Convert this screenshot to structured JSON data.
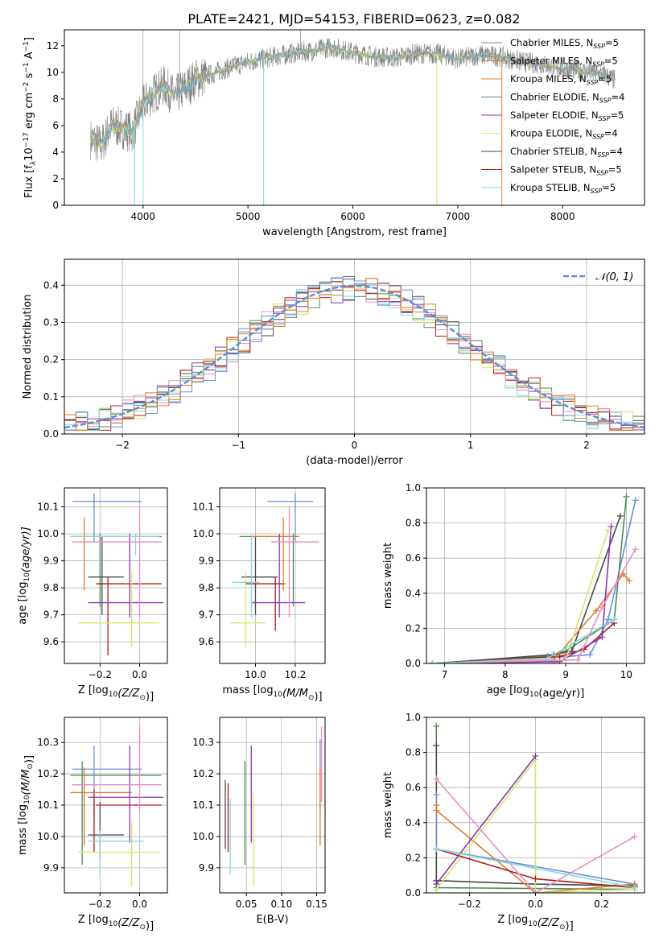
{
  "figure_title": "PLATE=2421, MJD=54153, FIBERID=0623, z=0.082",
  "colors": {
    "gray": "#808080",
    "cyan": "#7fd9e0",
    "orange": "#e07b28",
    "blue": "#6b8fd6",
    "purple": "#8e33b0",
    "pink": "#e88cc4",
    "yellowgreen": "#cfe86a",
    "darkred": "#b01a1a",
    "darkgray": "#4a4a4a",
    "green": "#4e8a58",
    "normal_line": "#5b8ed1"
  },
  "chart_data": [
    {
      "id": "spectrum",
      "type": "line",
      "xlabel": "wavelength [Angstrom, rest frame]",
      "ylabel": "Flux [f",
      "ylabel_sub": "λ",
      "ylabel_rest": "10",
      "ylabel_sup1": "−17",
      "ylabel_rest2": " erg cm",
      "ylabel_sup2": "−2",
      "ylabel_rest3": " s",
      "ylabel_sup3": "−1",
      "ylabel_rest4": " A",
      "ylabel_sup4": "−1",
      "ylabel_end": "]",
      "xlim": [
        3250,
        8780
      ],
      "ylim": [
        0,
        13.2
      ],
      "xticks": [
        4000,
        5000,
        6000,
        7000,
        8000
      ],
      "yticks": [
        0,
        2,
        4,
        6,
        8,
        10,
        12
      ],
      "legend": [
        {
          "prefix": "Chabrier MILES, N",
          "sub": "SSP",
          "suffix": "=5",
          "color": "#808080"
        },
        {
          "prefix": "Salpeter MILES, N",
          "sub": "SSP",
          "suffix": "=5",
          "color": "#e07b28"
        },
        {
          "prefix": "Kroupa MILES, N",
          "sub": "SSP",
          "suffix": "=5",
          "color": "#e07b28"
        },
        {
          "prefix": "Chabrier ELODIE, N",
          "sub": "SSP",
          "suffix": "=4",
          "color": "#4e8a58"
        },
        {
          "prefix": "Salpeter ELODIE, N",
          "sub": "SSP",
          "suffix": "=5",
          "color": "#8e33b0"
        },
        {
          "prefix": "Kroupa ELODIE, N",
          "sub": "SSP",
          "suffix": "=4",
          "color": "#cfe86a"
        },
        {
          "prefix": "Chabrier STELIB, N",
          "sub": "SSP",
          "suffix": "=4",
          "color": "#4a4a4a"
        },
        {
          "prefix": "Salpeter STELIB, N",
          "sub": "SSP",
          "suffix": "=5",
          "color": "#b01a1a"
        },
        {
          "prefix": "Kroupa STELIB, N",
          "sub": "SSP",
          "suffix": "=5",
          "color": "#7fd9e0"
        }
      ],
      "legend_position": "right",
      "envelope": {
        "x": [
          3500,
          3600,
          3700,
          3800,
          3900,
          4000,
          4100,
          4200,
          4300,
          4400,
          4500,
          4600,
          4800,
          5000,
          5200,
          5400,
          5600,
          5800,
          6000,
          6200,
          6400,
          6600,
          6800,
          7000,
          7200,
          7400,
          7600,
          7800,
          8000,
          8200,
          8400,
          8500
        ],
        "y": [
          5.0,
          4.5,
          6.0,
          5.8,
          5.5,
          7.6,
          8.4,
          9.0,
          8.2,
          8.8,
          9.5,
          9.7,
          10.3,
          10.8,
          11.1,
          11.4,
          11.6,
          11.9,
          11.5,
          11.2,
          11.1,
          11.4,
          11.4,
          11.0,
          11.3,
          11.2,
          10.8,
          10.6,
          10.3,
          10.1,
          9.8,
          9.4
        ]
      },
      "dips": [
        {
          "x": 4000,
          "y": 0
        },
        {
          "x": 5150,
          "y": 0
        },
        {
          "x": 3920,
          "y": 0
        },
        {
          "x": 6800,
          "y": 0
        },
        {
          "x": 7420,
          "y": 0
        }
      ]
    },
    {
      "id": "residuals",
      "type": "line",
      "xlabel": "(data-model)/error",
      "ylabel": "Normed distribution",
      "xlim": [
        -2.5,
        2.5
      ],
      "ylim": [
        0,
        0.47
      ],
      "xticks": [
        -2,
        -1,
        0,
        1,
        2
      ],
      "yticks": [
        0.0,
        0.1,
        0.2,
        0.3,
        0.4
      ],
      "grid": true,
      "legend": [
        {
          "label": "𝒩(0, 1)",
          "color": "#5b8ed1"
        }
      ],
      "legend_position": "top-right",
      "bin_width": 0.1
    },
    {
      "id": "age-z",
      "type": "scatter",
      "xlabel": "Z [log",
      "xlabel_sub": "10",
      "xlabel_mid": "(Z/Z",
      "xlabel_sub2": "⊙",
      "xlabel_end": ")]",
      "ylabel": "age  [log",
      "ylabel_sub": "10",
      "ylabel_end": "(age/yr)]",
      "xlim": [
        -0.38,
        0.14
      ],
      "ylim": [
        9.52,
        10.17
      ],
      "xticks": [
        -0.2,
        0.0
      ],
      "yticks": [
        9.6,
        9.7,
        9.8,
        9.9,
        10.0,
        10.1
      ],
      "grid": true,
      "crosses": [
        {
          "x": -0.23,
          "y": 10.12,
          "xe": [
            -0.34,
            0.01
          ],
          "ye": [
            9.97,
            10.15
          ],
          "color": "#6b8fd6"
        },
        {
          "x": -0.2,
          "y": 9.99,
          "xe": [
            -0.35,
            0.11
          ],
          "ye": [
            9.73,
            10.0
          ],
          "color": "#4e8a58"
        },
        {
          "x": -0.19,
          "y": 9.84,
          "xe": [
            -0.26,
            -0.08
          ],
          "ye": [
            9.7,
            9.99
          ],
          "color": "#4a4a4a"
        },
        {
          "x": -0.16,
          "y": 9.815,
          "xe": [
            -0.22,
            0.11
          ],
          "ye": [
            9.55,
            9.84
          ],
          "color": "#b01a1a"
        },
        {
          "x": -0.28,
          "y": 9.99,
          "xe": [
            -0.33,
            -0.1
          ],
          "ye": [
            9.79,
            10.06
          ],
          "color": "#e07b28"
        },
        {
          "x": -0.05,
          "y": 9.745,
          "xe": [
            -0.26,
            0.12
          ],
          "ye": [
            9.69,
            10.0
          ],
          "color": "#8e33b0"
        },
        {
          "x": -0.04,
          "y": 9.67,
          "xe": [
            -0.31,
            0.1
          ],
          "ye": [
            9.58,
            9.86
          ],
          "color": "#cfe86a"
        },
        {
          "x": 0.0,
          "y": 9.97,
          "xe": [
            -0.34,
            0.11
          ],
          "ye": [
            9.69,
            10.1
          ],
          "color": "#e88cc4"
        },
        {
          "x": -0.02,
          "y": 9.99,
          "xe": [
            -0.35,
            0.1
          ],
          "ye": [
            9.92,
            10.0
          ],
          "color": "#7fd9e0"
        }
      ]
    },
    {
      "id": "age-mass",
      "type": "scatter",
      "xlabel": "mass [log",
      "xlabel_sub": "10",
      "xlabel_mid": "(M/M",
      "xlabel_sub2": "⊙",
      "xlabel_end": ")]",
      "ylabel": "",
      "xlim": [
        9.82,
        10.35
      ],
      "ylim": [
        9.52,
        10.17
      ],
      "xticks": [
        10.0,
        10.2
      ],
      "yticks": [
        9.6,
        9.7,
        9.8,
        9.9,
        10.0,
        10.1
      ],
      "grid": true,
      "crosses": [
        {
          "x": 10.2,
          "y": 10.12,
          "xe": [
            10.06,
            10.29
          ],
          "ye": [
            9.97,
            10.15
          ],
          "color": "#6b8fd6"
        },
        {
          "x": 10.19,
          "y": 9.99,
          "xe": [
            9.92,
            10.22
          ],
          "ye": [
            9.73,
            10.0
          ],
          "color": "#4e8a58"
        },
        {
          "x": 10.0,
          "y": 9.84,
          "xe": [
            9.93,
            10.11
          ],
          "ye": [
            9.7,
            9.99
          ],
          "color": "#4a4a4a"
        },
        {
          "x": 10.1,
          "y": 9.815,
          "xe": [
            9.95,
            10.15
          ],
          "ye": [
            9.64,
            9.84
          ],
          "color": "#b01a1a"
        },
        {
          "x": 10.14,
          "y": 9.99,
          "xe": [
            9.98,
            10.22
          ],
          "ye": [
            9.79,
            10.06
          ],
          "color": "#e07b28"
        },
        {
          "x": 10.12,
          "y": 9.745,
          "xe": [
            9.98,
            10.25
          ],
          "ye": [
            9.69,
            10.0
          ],
          "color": "#8e33b0"
        },
        {
          "x": 9.95,
          "y": 9.67,
          "xe": [
            9.87,
            10.05
          ],
          "ye": [
            9.58,
            9.86
          ],
          "color": "#cfe86a"
        },
        {
          "x": 10.17,
          "y": 9.97,
          "xe": [
            10.08,
            10.32
          ],
          "ye": [
            9.69,
            10.1
          ],
          "color": "#e88cc4"
        },
        {
          "x": 9.98,
          "y": 9.82,
          "xe": [
            9.88,
            10.02
          ],
          "ye": [
            9.69,
            9.99
          ],
          "color": "#7fd9e0"
        }
      ]
    },
    {
      "id": "weight-age",
      "type": "line",
      "xlabel": "age  [log",
      "xlabel_sub": "10",
      "xlabel_end": "(age/yr)]",
      "ylabel": "mass weight",
      "xlim": [
        6.7,
        10.3
      ],
      "ylim": [
        0,
        1.0
      ],
      "xticks": [
        7,
        8,
        9,
        10
      ],
      "yticks": [
        0.0,
        0.2,
        0.4,
        0.6,
        0.8,
        1.0
      ],
      "grid": true,
      "series": [
        {
          "color": "#6b8fd6",
          "x": [
            6.8,
            8.7,
            9.4,
            9.7,
            10.15
          ],
          "y": [
            0.0,
            0.03,
            0.05,
            0.25,
            0.93
          ]
        },
        {
          "color": "#4e8a58",
          "x": [
            6.8,
            8.7,
            9.0,
            9.8,
            10.0
          ],
          "y": [
            0.0,
            0.04,
            0.07,
            0.25,
            0.95
          ]
        },
        {
          "color": "#4a4a4a",
          "x": [
            6.8,
            8.8,
            9.1,
            9.9
          ],
          "y": [
            0.0,
            0.05,
            0.07,
            0.84
          ]
        },
        {
          "color": "#b01a1a",
          "x": [
            6.8,
            8.9,
            9.3,
            9.8
          ],
          "y": [
            0.0,
            0.04,
            0.08,
            0.23
          ]
        },
        {
          "color": "#e07b28",
          "x": [
            6.8,
            8.8,
            9.5,
            9.95,
            10.05
          ],
          "y": [
            0.0,
            0.02,
            0.3,
            0.51,
            0.47
          ]
        },
        {
          "color": "#8e33b0",
          "x": [
            6.8,
            8.9,
            9.6,
            9.75
          ],
          "y": [
            0.0,
            0.01,
            0.15,
            0.78
          ]
        },
        {
          "color": "#cfe86a",
          "x": [
            6.8,
            9.0,
            9.7
          ],
          "y": [
            0.0,
            0.02,
            0.76
          ]
        },
        {
          "color": "#e88cc4",
          "x": [
            6.8,
            9.2,
            9.6,
            10.15
          ],
          "y": [
            0.0,
            0.02,
            0.32,
            0.65
          ]
        },
        {
          "color": "#7fd9e0",
          "x": [
            6.8,
            8.7,
            9.8
          ],
          "y": [
            0.0,
            0.03,
            0.25
          ]
        }
      ]
    },
    {
      "id": "mass-z",
      "type": "scatter",
      "xlabel": "Z [log",
      "xlabel_sub": "10",
      "xlabel_mid": "(Z/Z",
      "xlabel_sub2": "⊙",
      "xlabel_end": ")]",
      "ylabel": "mass [log",
      "ylabel_sub": "10",
      "ylabel_mid": "(M/M",
      "ylabel_sub2": "⊙",
      "ylabel_end": ")]",
      "xlim": [
        -0.38,
        0.14
      ],
      "ylim": [
        9.82,
        10.38
      ],
      "xticks": [
        -0.2,
        0.0
      ],
      "yticks": [
        9.9,
        10.0,
        10.1,
        10.2,
        10.3
      ],
      "grid": true,
      "crosses": [
        {
          "x": -0.23,
          "y": 10.215,
          "xe": [
            -0.34,
            0.01
          ],
          "ye": [
            10.06,
            10.29
          ],
          "color": "#6b8fd6"
        },
        {
          "x": -0.29,
          "y": 10.195,
          "xe": [
            -0.35,
            0.11
          ],
          "ye": [
            9.91,
            10.24
          ],
          "color": "#4e8a58"
        },
        {
          "x": -0.2,
          "y": 10.005,
          "xe": [
            -0.26,
            -0.08
          ],
          "ye": [
            9.93,
            10.11
          ],
          "color": "#4a4a4a"
        },
        {
          "x": -0.23,
          "y": 10.1,
          "xe": [
            -0.22,
            0.11
          ],
          "ye": [
            9.95,
            10.15
          ],
          "color": "#b01a1a"
        },
        {
          "x": -0.28,
          "y": 10.14,
          "xe": [
            -0.35,
            -0.04
          ],
          "ye": [
            9.97,
            10.22
          ],
          "color": "#e07b28"
        },
        {
          "x": -0.05,
          "y": 10.125,
          "xe": [
            -0.26,
            0.12
          ],
          "ye": [
            9.98,
            10.29
          ],
          "color": "#8e33b0"
        },
        {
          "x": -0.04,
          "y": 9.95,
          "xe": [
            -0.31,
            0.1
          ],
          "ye": [
            9.84,
            10.05
          ],
          "color": "#cfe86a"
        },
        {
          "x": 0.0,
          "y": 10.165,
          "xe": [
            -0.34,
            0.11
          ],
          "ye": [
            10.08,
            10.35
          ],
          "color": "#e88cc4"
        },
        {
          "x": -0.2,
          "y": 9.985,
          "xe": [
            -0.26,
            0.02
          ],
          "ye": [
            9.88,
            10.02
          ],
          "color": "#7fd9e0"
        }
      ]
    },
    {
      "id": "mass-ebv",
      "type": "scatter",
      "xlabel": "E(B-V)",
      "ylabel": "",
      "xlim": [
        0.012,
        0.162
      ],
      "ylim": [
        9.82,
        10.38
      ],
      "xticks": [
        0.05,
        0.1,
        0.15
      ],
      "yticks": [
        9.9,
        10.0,
        10.1,
        10.2,
        10.3
      ],
      "grid": true,
      "crosses": [
        {
          "x": 0.155,
          "y": 10.215,
          "ye": [
            10.08,
            10.31
          ],
          "color": "#6b8fd6"
        },
        {
          "x": 0.048,
          "y": 10.195,
          "ye": [
            9.91,
            10.24
          ],
          "color": "#4e8a58"
        },
        {
          "x": 0.02,
          "y": 10.09,
          "ye": [
            9.96,
            10.18
          ],
          "color": "#4a4a4a"
        },
        {
          "x": 0.024,
          "y": 10.1,
          "ye": [
            9.95,
            10.17
          ],
          "color": "#b01a1a"
        },
        {
          "x": 0.155,
          "y": 10.14,
          "ye": [
            9.97,
            10.22
          ],
          "color": "#e07b28"
        },
        {
          "x": 0.057,
          "y": 10.125,
          "ye": [
            9.98,
            10.29
          ],
          "color": "#8e33b0"
        },
        {
          "x": 0.06,
          "y": 9.95,
          "ye": [
            9.84,
            10.14
          ],
          "color": "#cfe86a"
        },
        {
          "x": 0.157,
          "y": 10.165,
          "ye": [
            10.11,
            10.35
          ],
          "color": "#e88cc4"
        },
        {
          "x": 0.027,
          "y": 9.985,
          "ye": [
            9.88,
            10.12
          ],
          "color": "#7fd9e0"
        }
      ]
    },
    {
      "id": "weight-z",
      "type": "line",
      "xlabel": "Z [log",
      "xlabel_sub": "10",
      "xlabel_mid": "(Z/Z",
      "xlabel_sub2": "⊙",
      "xlabel_end": ")]",
      "ylabel": "mass weight",
      "xlim": [
        -0.33,
        0.33
      ],
      "ylim": [
        0,
        1.0
      ],
      "xticks": [
        -0.2,
        0.0,
        0.2
      ],
      "yticks": [
        0.0,
        0.2,
        0.4,
        0.6,
        0.8,
        1.0
      ],
      "grid": true,
      "series": [
        {
          "color": "#4e8a58",
          "x": [
            -0.3,
            -0.3,
            0.3
          ],
          "y": [
            0.95,
            0.03,
            0.02
          ]
        },
        {
          "color": "#4a4a4a",
          "x": [
            -0.3,
            -0.3,
            0.0,
            0.3
          ],
          "y": [
            0.84,
            0.07,
            0.05,
            0.04
          ]
        },
        {
          "color": "#6b8fd6",
          "x": [
            -0.3,
            -0.3,
            0.3
          ],
          "y": [
            0.56,
            0.25,
            0.05
          ]
        },
        {
          "color": "#e07b28",
          "x": [
            -0.3,
            -0.3,
            0.0,
            0.3
          ],
          "y": [
            0.5,
            0.47,
            0.0,
            0.05
          ]
        },
        {
          "color": "#cfe86a",
          "x": [
            -0.3,
            0.0,
            0.0,
            0.3
          ],
          "y": [
            0.02,
            0.76,
            0.0,
            0.02
          ]
        },
        {
          "color": "#8e33b0",
          "x": [
            -0.3,
            0.0
          ],
          "y": [
            0.05,
            0.78
          ]
        },
        {
          "color": "#b01a1a",
          "x": [
            -0.3,
            0.0,
            0.3
          ],
          "y": [
            0.25,
            0.08,
            0.03
          ]
        },
        {
          "color": "#e88cc4",
          "x": [
            -0.3,
            0.0,
            0.3
          ],
          "y": [
            0.65,
            0.0,
            0.32
          ]
        },
        {
          "color": "#7fd9e0",
          "x": [
            -0.3,
            0.3
          ],
          "y": [
            0.25,
            0.03
          ]
        }
      ]
    }
  ]
}
